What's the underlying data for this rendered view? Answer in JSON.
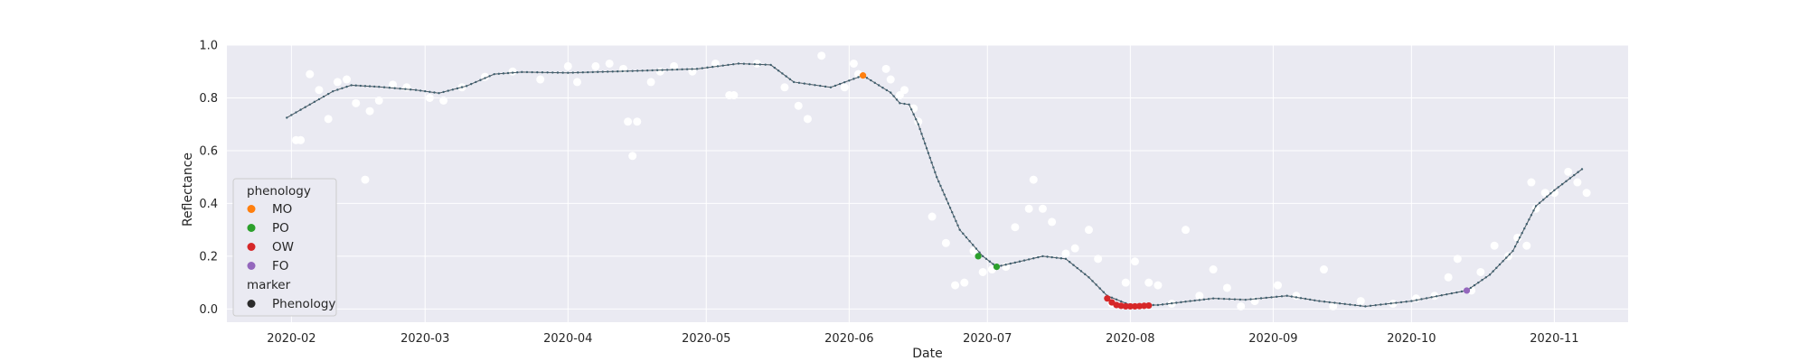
{
  "chart_data": {
    "type": "scatter",
    "xlabel": "Date",
    "ylabel": "Reflectance",
    "x_range": [
      "2020-01-18",
      "2020-11-17"
    ],
    "ylim": [
      -0.05,
      1.0
    ],
    "x_tick_labels": [
      "2020-02",
      "2020-03",
      "2020-04",
      "2020-05",
      "2020-06",
      "2020-07",
      "2020-08",
      "2020-09",
      "2020-10",
      "2020-11"
    ],
    "x_tick_dates": [
      "2020-02-01",
      "2020-03-01",
      "2020-04-01",
      "2020-05-01",
      "2020-06-01",
      "2020-07-01",
      "2020-08-01",
      "2020-09-01",
      "2020-10-01",
      "2020-11-01"
    ],
    "y_ticks": [
      0.0,
      0.2,
      0.4,
      0.6,
      0.8,
      1.0
    ],
    "y_tick_labels": [
      "0.0",
      "0.2",
      "0.4",
      "0.6",
      "0.8",
      "1.0"
    ],
    "grid": true,
    "legend_position": "lower-left",
    "legend": {
      "hue_title": "phenology",
      "hue_items": [
        {
          "label": "MO",
          "color": "#ff7f0e"
        },
        {
          "label": "PO",
          "color": "#2ca02c"
        },
        {
          "label": "OW",
          "color": "#d62728"
        },
        {
          "label": "FO",
          "color": "#9467bd"
        }
      ],
      "marker_title": "marker",
      "marker_items": [
        {
          "label": "Phenology",
          "color": "#2b2b2b"
        }
      ]
    },
    "colors": {
      "background": "#eaeaf2",
      "grid": "#ffffff",
      "raw": "#ffffff",
      "smooth_line": "#4c5a63",
      "smooth_dot": "#3e5f6e"
    },
    "raw_observations": [
      [
        "2020-02-02",
        0.64
      ],
      [
        "2020-02-03",
        0.64
      ],
      [
        "2020-02-05",
        0.89
      ],
      [
        "2020-02-07",
        0.83
      ],
      [
        "2020-02-09",
        0.72
      ],
      [
        "2020-02-11",
        0.86
      ],
      [
        "2020-02-13",
        0.87
      ],
      [
        "2020-02-15",
        0.78
      ],
      [
        "2020-02-17",
        0.49
      ],
      [
        "2020-02-18",
        0.75
      ],
      [
        "2020-02-20",
        0.79
      ],
      [
        "2020-02-23",
        0.85
      ],
      [
        "2020-02-26",
        0.84
      ],
      [
        "2020-03-02",
        0.8
      ],
      [
        "2020-03-05",
        0.79
      ],
      [
        "2020-03-09",
        0.84
      ],
      [
        "2020-03-14",
        0.88
      ],
      [
        "2020-03-20",
        0.9
      ],
      [
        "2020-03-26",
        0.87
      ],
      [
        "2020-04-01",
        0.92
      ],
      [
        "2020-04-03",
        0.86
      ],
      [
        "2020-04-07",
        0.92
      ],
      [
        "2020-04-10",
        0.93
      ],
      [
        "2020-04-13",
        0.91
      ],
      [
        "2020-04-14",
        0.71
      ],
      [
        "2020-04-15",
        0.58
      ],
      [
        "2020-04-16",
        0.71
      ],
      [
        "2020-04-19",
        0.86
      ],
      [
        "2020-04-21",
        0.9
      ],
      [
        "2020-04-24",
        0.92
      ],
      [
        "2020-04-28",
        0.9
      ],
      [
        "2020-05-03",
        0.93
      ],
      [
        "2020-05-06",
        0.81
      ],
      [
        "2020-05-07",
        0.81
      ],
      [
        "2020-05-12",
        0.93
      ],
      [
        "2020-05-18",
        0.84
      ],
      [
        "2020-05-21",
        0.77
      ],
      [
        "2020-05-23",
        0.72
      ],
      [
        "2020-05-26",
        0.96
      ],
      [
        "2020-05-31",
        0.84
      ],
      [
        "2020-06-02",
        0.93
      ],
      [
        "2020-06-03",
        0.89
      ],
      [
        "2020-06-09",
        0.91
      ],
      [
        "2020-06-10",
        0.87
      ],
      [
        "2020-06-12",
        0.81
      ],
      [
        "2020-06-13",
        0.83
      ],
      [
        "2020-06-15",
        0.76
      ],
      [
        "2020-06-16",
        0.71
      ],
      [
        "2020-06-19",
        0.35
      ],
      [
        "2020-06-22",
        0.25
      ],
      [
        "2020-06-24",
        0.09
      ],
      [
        "2020-06-26",
        0.1
      ],
      [
        "2020-06-28",
        0.22
      ],
      [
        "2020-06-30",
        0.14
      ],
      [
        "2020-07-02",
        0.15
      ],
      [
        "2020-07-05",
        0.16
      ],
      [
        "2020-07-07",
        0.31
      ],
      [
        "2020-07-10",
        0.38
      ],
      [
        "2020-07-11",
        0.49
      ],
      [
        "2020-07-13",
        0.38
      ],
      [
        "2020-07-15",
        0.33
      ],
      [
        "2020-07-18",
        0.21
      ],
      [
        "2020-07-20",
        0.23
      ],
      [
        "2020-07-23",
        0.3
      ],
      [
        "2020-07-25",
        0.19
      ],
      [
        "2020-07-28",
        0.02
      ],
      [
        "2020-07-31",
        0.1
      ],
      [
        "2020-08-02",
        0.18
      ],
      [
        "2020-08-05",
        0.1
      ],
      [
        "2020-08-07",
        0.09
      ],
      [
        "2020-08-10",
        0.02
      ],
      [
        "2020-08-13",
        0.3
      ],
      [
        "2020-08-16",
        0.05
      ],
      [
        "2020-08-19",
        0.15
      ],
      [
        "2020-08-22",
        0.08
      ],
      [
        "2020-08-25",
        0.01
      ],
      [
        "2020-08-28",
        0.03
      ],
      [
        "2020-09-02",
        0.09
      ],
      [
        "2020-09-06",
        0.05
      ],
      [
        "2020-09-12",
        0.15
      ],
      [
        "2020-09-14",
        0.01
      ],
      [
        "2020-09-20",
        0.03
      ],
      [
        "2020-09-27",
        0.02
      ],
      [
        "2020-10-02",
        0.04
      ],
      [
        "2020-10-06",
        0.05
      ],
      [
        "2020-10-09",
        0.12
      ],
      [
        "2020-10-11",
        0.19
      ],
      [
        "2020-10-14",
        0.07
      ],
      [
        "2020-10-16",
        0.14
      ],
      [
        "2020-10-19",
        0.24
      ],
      [
        "2020-10-22",
        0.2
      ],
      [
        "2020-10-24",
        0.27
      ],
      [
        "2020-10-26",
        0.24
      ],
      [
        "2020-10-27",
        0.48
      ],
      [
        "2020-10-28",
        0.38
      ],
      [
        "2020-10-30",
        0.44
      ],
      [
        "2020-11-01",
        0.44
      ],
      [
        "2020-11-04",
        0.52
      ],
      [
        "2020-11-06",
        0.48
      ],
      [
        "2020-11-08",
        0.44
      ]
    ],
    "smooth_series": [
      [
        "2020-01-31",
        0.725
      ],
      [
        "2020-02-05",
        0.775
      ],
      [
        "2020-02-10",
        0.825
      ],
      [
        "2020-02-14",
        0.848
      ],
      [
        "2020-02-20",
        0.842
      ],
      [
        "2020-02-28",
        0.83
      ],
      [
        "2020-03-04",
        0.818
      ],
      [
        "2020-03-10",
        0.845
      ],
      [
        "2020-03-16",
        0.89
      ],
      [
        "2020-03-22",
        0.898
      ],
      [
        "2020-04-01",
        0.895
      ],
      [
        "2020-04-15",
        0.902
      ],
      [
        "2020-04-29",
        0.91
      ],
      [
        "2020-05-08",
        0.93
      ],
      [
        "2020-05-15",
        0.925
      ],
      [
        "2020-05-20",
        0.86
      ],
      [
        "2020-05-28",
        0.84
      ],
      [
        "2020-06-04",
        0.885
      ],
      [
        "2020-06-10",
        0.82
      ],
      [
        "2020-06-12",
        0.78
      ],
      [
        "2020-06-14",
        0.775
      ],
      [
        "2020-06-16",
        0.7
      ],
      [
        "2020-06-20",
        0.5
      ],
      [
        "2020-06-25",
        0.3
      ],
      [
        "2020-06-30",
        0.2
      ],
      [
        "2020-07-03",
        0.16
      ],
      [
        "2020-07-08",
        0.18
      ],
      [
        "2020-07-13",
        0.2
      ],
      [
        "2020-07-18",
        0.19
      ],
      [
        "2020-07-23",
        0.12
      ],
      [
        "2020-07-27",
        0.05
      ],
      [
        "2020-08-01",
        0.015
      ],
      [
        "2020-08-07",
        0.015
      ],
      [
        "2020-08-14",
        0.03
      ],
      [
        "2020-08-19",
        0.04
      ],
      [
        "2020-08-26",
        0.035
      ],
      [
        "2020-09-04",
        0.05
      ],
      [
        "2020-09-11",
        0.03
      ],
      [
        "2020-09-21",
        0.01
      ],
      [
        "2020-10-01",
        0.03
      ],
      [
        "2020-10-13",
        0.07
      ],
      [
        "2020-10-18",
        0.13
      ],
      [
        "2020-10-23",
        0.22
      ],
      [
        "2020-10-28",
        0.39
      ],
      [
        "2020-11-01",
        0.45
      ],
      [
        "2020-11-07",
        0.53
      ]
    ],
    "phenology_points": [
      {
        "label": "MO",
        "date": "2020-06-04",
        "value": 0.885
      },
      {
        "label": "PO",
        "date": "2020-06-29",
        "value": 0.2
      },
      {
        "label": "PO",
        "date": "2020-07-03",
        "value": 0.16
      },
      {
        "label": "OW",
        "date": "2020-07-27",
        "value": 0.04
      },
      {
        "label": "OW",
        "date": "2020-07-28",
        "value": 0.025
      },
      {
        "label": "OW",
        "date": "2020-07-29",
        "value": 0.015
      },
      {
        "label": "OW",
        "date": "2020-07-30",
        "value": 0.012
      },
      {
        "label": "OW",
        "date": "2020-07-31",
        "value": 0.01
      },
      {
        "label": "OW",
        "date": "2020-08-01",
        "value": 0.01
      },
      {
        "label": "OW",
        "date": "2020-08-02",
        "value": 0.01
      },
      {
        "label": "OW",
        "date": "2020-08-03",
        "value": 0.011
      },
      {
        "label": "OW",
        "date": "2020-08-04",
        "value": 0.012
      },
      {
        "label": "OW",
        "date": "2020-08-05",
        "value": 0.013
      },
      {
        "label": "FO",
        "date": "2020-10-13",
        "value": 0.07
      }
    ]
  }
}
